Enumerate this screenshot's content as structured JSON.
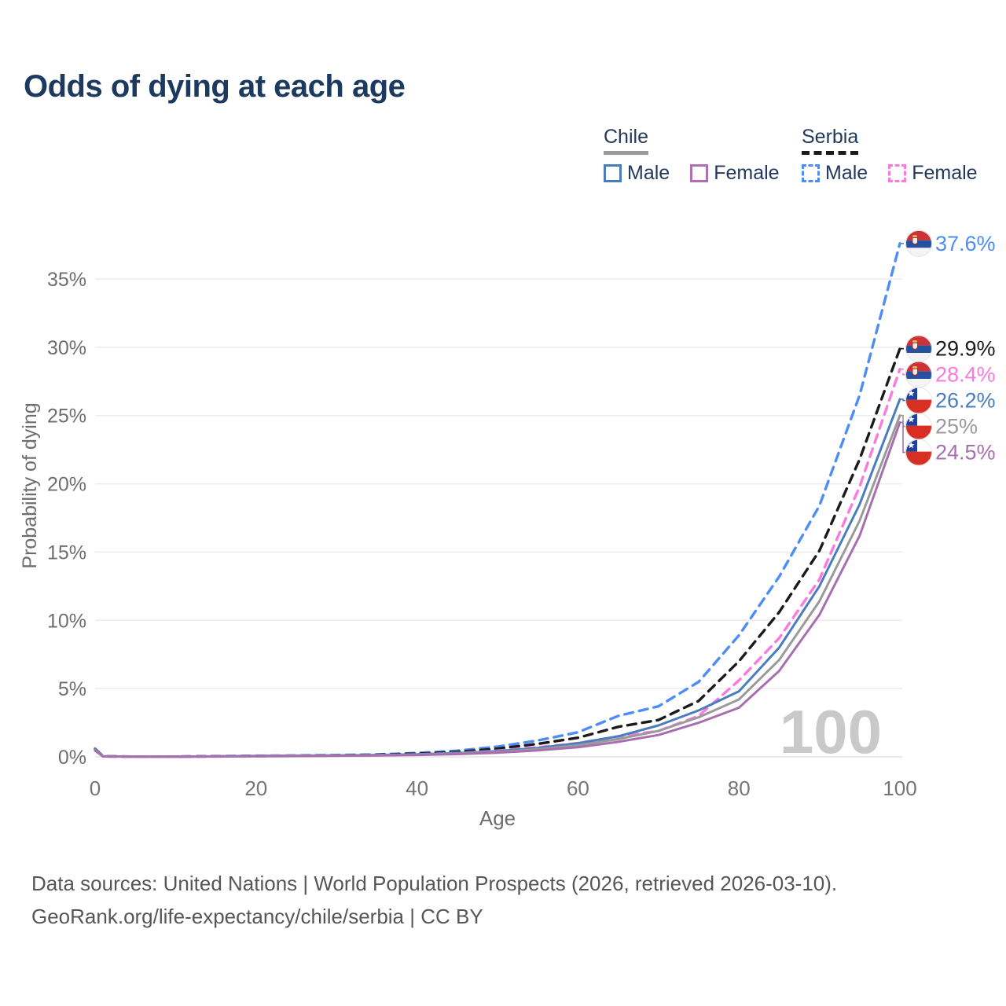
{
  "title": "Odds of dying at each age",
  "legend": {
    "groups": [
      {
        "name": "Chile",
        "line_style": "solid",
        "line_color": "#9a9a9a",
        "items": [
          {
            "label": "Male",
            "color": "#4a7dbd"
          },
          {
            "label": "Female",
            "color": "#b06fb5"
          }
        ]
      },
      {
        "name": "Serbia",
        "line_style": "dashed",
        "line_color": "#1a1a1a",
        "items": [
          {
            "label": "Male",
            "color": "#4d8df5"
          },
          {
            "label": "Female",
            "color": "#fb7ade"
          }
        ]
      }
    ]
  },
  "chart_data": {
    "type": "line",
    "title": "Odds of dying at each age",
    "xlabel": "Age",
    "ylabel": "Probability of dying",
    "xlim": [
      0,
      100
    ],
    "ylim": [
      0,
      38
    ],
    "xticks": [
      0,
      20,
      40,
      60,
      80,
      100
    ],
    "yticks_pct": [
      0,
      5,
      10,
      15,
      20,
      25,
      30,
      35
    ],
    "grid": true,
    "legend_position": "top-right",
    "watermark": "100",
    "ages": [
      0,
      1,
      5,
      10,
      15,
      20,
      25,
      30,
      35,
      40,
      45,
      50,
      55,
      60,
      65,
      70,
      75,
      80,
      85,
      90,
      95,
      100
    ],
    "series": [
      {
        "name": "Serbia Male",
        "country": "serbia",
        "sex": "male",
        "color": "#4d8df5",
        "dashed": true,
        "end_label": "37.6%",
        "values_pct": [
          0.6,
          0.04,
          0.02,
          0.02,
          0.05,
          0.08,
          0.1,
          0.13,
          0.18,
          0.28,
          0.45,
          0.75,
          1.2,
          1.8,
          3.0,
          3.7,
          5.5,
          8.9,
          13.2,
          18.4,
          26.5,
          37.6
        ]
      },
      {
        "name": "Serbia Overall",
        "country": "serbia",
        "sex": "all",
        "color": "#1a1a1a",
        "dashed": true,
        "end_label": "29.9%",
        "values_pct": [
          0.55,
          0.04,
          0.02,
          0.02,
          0.04,
          0.06,
          0.08,
          0.11,
          0.15,
          0.23,
          0.36,
          0.6,
          0.95,
          1.4,
          2.2,
          2.7,
          4.1,
          7.0,
          10.6,
          15.1,
          21.8,
          29.9
        ]
      },
      {
        "name": "Serbia Female",
        "country": "serbia",
        "sex": "female",
        "color": "#fb7ade",
        "dashed": true,
        "end_label": "28.4%",
        "values_pct": [
          0.5,
          0.03,
          0.01,
          0.01,
          0.03,
          0.05,
          0.07,
          0.09,
          0.12,
          0.18,
          0.28,
          0.45,
          0.7,
          1.0,
          1.5,
          1.9,
          3.0,
          5.6,
          8.7,
          13.0,
          19.8,
          28.4
        ]
      },
      {
        "name": "Chile Male",
        "country": "chile",
        "sex": "male",
        "color": "#4a7dbd",
        "dashed": false,
        "end_label": "26.2%",
        "values_pct": [
          0.55,
          0.04,
          0.02,
          0.02,
          0.04,
          0.07,
          0.09,
          0.11,
          0.14,
          0.19,
          0.28,
          0.42,
          0.65,
          1.0,
          1.5,
          2.3,
          3.4,
          4.8,
          8.0,
          12.5,
          18.5,
          26.2
        ]
      },
      {
        "name": "Chile Overall",
        "country": "chile",
        "sex": "all",
        "color": "#9a9a9a",
        "dashed": false,
        "end_label": "25%",
        "values_pct": [
          0.5,
          0.04,
          0.02,
          0.02,
          0.03,
          0.06,
          0.08,
          0.1,
          0.12,
          0.16,
          0.24,
          0.36,
          0.56,
          0.85,
          1.3,
          1.9,
          2.9,
          4.2,
          7.1,
          11.4,
          17.3,
          25.0
        ]
      },
      {
        "name": "Chile Female",
        "country": "chile",
        "sex": "female",
        "color": "#a76fb0",
        "dashed": false,
        "end_label": "24.5%",
        "values_pct": [
          0.45,
          0.03,
          0.01,
          0.01,
          0.03,
          0.04,
          0.06,
          0.08,
          0.1,
          0.14,
          0.2,
          0.3,
          0.47,
          0.7,
          1.1,
          1.6,
          2.5,
          3.6,
          6.3,
          10.4,
          16.2,
          24.5
        ]
      }
    ]
  },
  "footer": {
    "line1": "Data sources: United Nations | World Population Prospects (2026, retrieved 2026-03-10).",
    "line2": "GeoRank.org/life-expectancy/chile/serbia | CC BY"
  }
}
